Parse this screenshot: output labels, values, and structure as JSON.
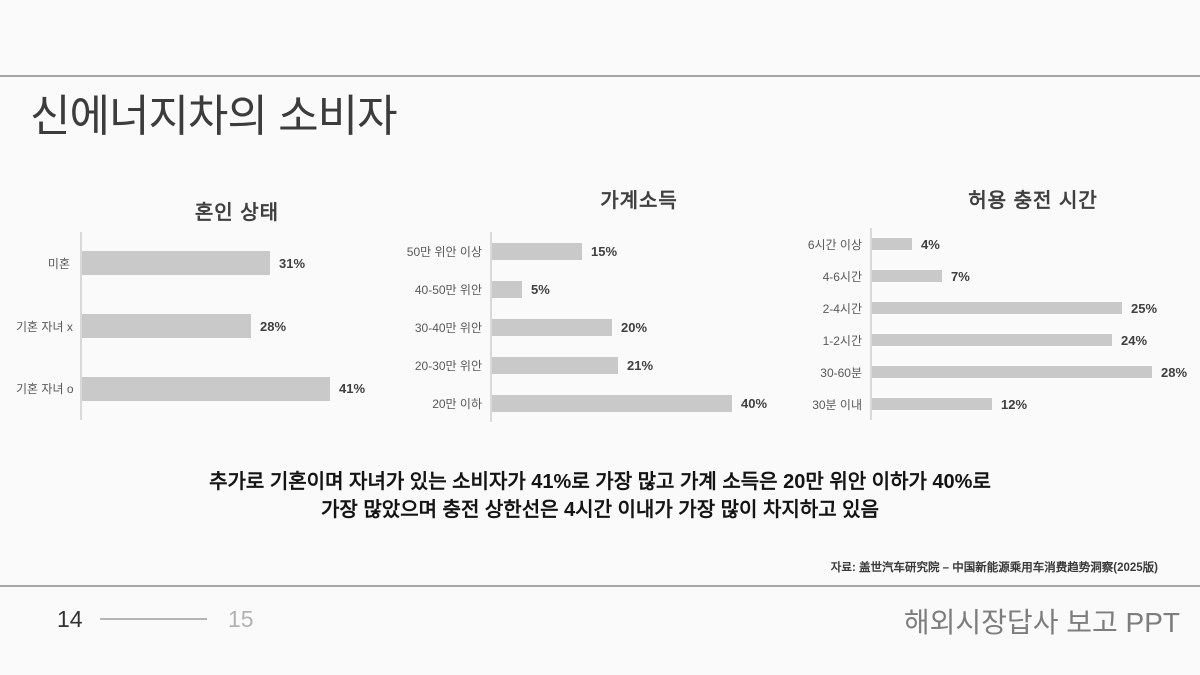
{
  "slide": {
    "title": "신에너지차의 소비자",
    "insight": {
      "line1": "추가로 기혼이며 자녀가 있는 소비자가 41%로 가장 많고 가계 소득은 20만 위안 이하가 40%로",
      "line2": "가장 많았으며 충전 상한선은 4시간 이내가 가장 많이 차지하고 있음"
    },
    "source": "자료: 盖世汽车研究院 – 中国新能源乘用车消费趋势洞察(2025版)",
    "footer": {
      "page_current": "14",
      "page_next": "15",
      "deck_title": "해외시장답사 보고 PPT"
    },
    "colors": {
      "background": "#fafafa",
      "bar_fill": "#c9c9c9",
      "axis_line": "#d9d9d9",
      "divider_rule": "#a6a6a6",
      "value_label": "#404040",
      "category_label": "#595959"
    }
  },
  "chart_data": [
    {
      "type": "bar",
      "orientation": "horizontal",
      "title": "혼인 상태",
      "categories": [
        "미혼",
        "기혼 자녀 x",
        "기혼 자녀 o"
      ],
      "values": [
        31,
        28,
        41
      ],
      "value_labels": [
        "31%",
        "28%",
        "41%"
      ],
      "unit": "%",
      "xlim": [
        0,
        45
      ],
      "grid": false,
      "legend": false
    },
    {
      "type": "bar",
      "orientation": "horizontal",
      "title": "가계소득",
      "categories": [
        "50만 위안 이상",
        "40-50만 위안",
        "30-40만 위안",
        "20-30만 위안",
        "20만 이하"
      ],
      "values": [
        15,
        5,
        20,
        21,
        40
      ],
      "value_labels": [
        "15%",
        "5%",
        "20%",
        "21%",
        "40%"
      ],
      "unit": "%",
      "xlim": [
        0,
        45
      ],
      "grid": false,
      "legend": false
    },
    {
      "type": "bar",
      "orientation": "horizontal",
      "title": "허용 충전 시간",
      "categories": [
        "6시간 이상",
        "4-6시간",
        "2-4시간",
        "1-2시간",
        "30-60분",
        "30분 이내"
      ],
      "values": [
        4,
        7,
        25,
        24,
        28,
        12
      ],
      "value_labels": [
        "4%",
        "7%",
        "25%",
        "24%",
        "28%",
        "12%"
      ],
      "unit": "%",
      "xlim": [
        0,
        30
      ],
      "grid": false,
      "legend": false
    }
  ]
}
